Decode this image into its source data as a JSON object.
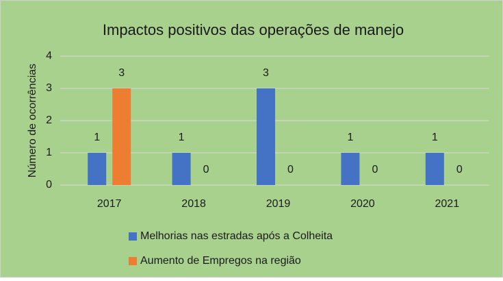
{
  "chart_data": {
    "type": "bar",
    "title": "Impactos positivos das operações de manejo",
    "y_label": "Número de ocorrências",
    "categories": [
      "2017",
      "2018",
      "2019",
      "2020",
      "2021"
    ],
    "series": [
      {
        "name": "Melhorias nas estradas após a Colheita",
        "color": "#4472c4",
        "values": [
          1,
          1,
          3,
          1,
          1
        ]
      },
      {
        "name": "Aumento de Empregos na região",
        "color": "#ed7d31",
        "values": [
          3,
          0,
          0,
          0,
          0
        ]
      }
    ],
    "ylim": [
      0,
      4
    ],
    "yticks": [
      0,
      1,
      2,
      3,
      4
    ],
    "grid": true,
    "legend": "bottom",
    "background": "#a9d18e"
  }
}
